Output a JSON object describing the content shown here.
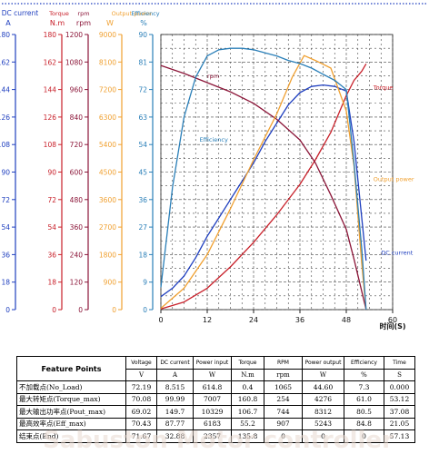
{
  "chart_data": {
    "type": "line",
    "xlabel": "时间(S)",
    "x_ticks": [
      0,
      12,
      24,
      36,
      48,
      60
    ],
    "xlim": [
      0,
      60
    ],
    "grid": true,
    "axes": [
      {
        "key": "dc_current",
        "title": "DC current",
        "unit": "A",
        "color": "#1f3fbf",
        "max": 180,
        "ticks": [
          0,
          18,
          36,
          54,
          72,
          90,
          108,
          126,
          144,
          162,
          180
        ]
      },
      {
        "key": "torque",
        "title": "Torque",
        "unit": "N.m",
        "color": "#c8202a",
        "max": 180,
        "ticks": [
          0,
          18,
          36,
          54,
          72,
          90,
          108,
          126,
          144,
          162,
          180
        ]
      },
      {
        "key": "rpm",
        "title": "rpm",
        "unit": "rpm",
        "color": "#8b1538",
        "max": 1200,
        "ticks": [
          0,
          120,
          240,
          360,
          480,
          600,
          720,
          840,
          960,
          1080,
          1200
        ]
      },
      {
        "key": "output_power",
        "title": "Output power",
        "unit": "W",
        "color": "#f0a030",
        "max": 9000,
        "ticks": [
          0,
          900,
          1800,
          2700,
          3600,
          4500,
          5400,
          6300,
          7200,
          8100,
          9000
        ]
      },
      {
        "key": "efficiency",
        "title": "Efficiency",
        "unit": "%",
        "color": "#2a7fb8",
        "max": 90,
        "ticks": [
          0,
          9,
          18,
          27,
          36,
          45,
          54,
          63,
          72,
          81,
          90
        ]
      }
    ],
    "series": [
      {
        "axis": "dc_current",
        "label": "DC current",
        "color": "#1f3fbf",
        "x": [
          0,
          3,
          6,
          9,
          12,
          15,
          18,
          21,
          24,
          27,
          30,
          33,
          36,
          39,
          42,
          45,
          48,
          50,
          52,
          53.12
        ],
        "y": [
          8.5,
          14,
          22,
          34,
          48,
          60,
          72,
          84,
          96,
          110,
          122,
          134,
          142,
          146,
          147,
          146,
          143,
          110,
          60,
          32
        ]
      },
      {
        "axis": "torque",
        "label": "Torque",
        "color": "#c8202a",
        "x": [
          0,
          6,
          12,
          18,
          24,
          30,
          36,
          40,
          44,
          48,
          50,
          52,
          53.12
        ],
        "y": [
          0.4,
          5,
          14,
          28,
          44,
          62,
          82,
          98,
          116,
          140,
          150,
          156,
          160.8
        ]
      },
      {
        "axis": "rpm",
        "label": "rpm",
        "color": "#8b1538",
        "x": [
          0,
          6,
          12,
          18,
          24,
          30,
          36,
          40,
          44,
          48,
          50,
          52,
          53.12
        ],
        "y": [
          1065,
          1030,
          990,
          950,
          900,
          830,
          740,
          640,
          500,
          350,
          220,
          80,
          0
        ]
      },
      {
        "axis": "output_power",
        "label": "Output power",
        "color": "#f0a030",
        "x": [
          0,
          6,
          12,
          18,
          24,
          30,
          34,
          37.08,
          40,
          44,
          48,
          50,
          52,
          53.12
        ],
        "y": [
          44.6,
          700,
          1800,
          3300,
          4900,
          6400,
          7600,
          8312,
          8150,
          7900,
          6500,
          4700,
          1500,
          0
        ]
      },
      {
        "axis": "efficiency",
        "label": "Efficiency",
        "color": "#2a7fb8",
        "x": [
          0,
          3,
          6,
          9,
          12,
          15,
          18,
          21,
          24,
          27,
          30,
          33,
          36,
          39,
          42,
          45,
          48,
          50,
          52,
          53.12
        ],
        "y": [
          7.3,
          40,
          63,
          76,
          83,
          85,
          85.5,
          85.5,
          85,
          84,
          83,
          81.5,
          80.5,
          79,
          77,
          75,
          72,
          48,
          20,
          0
        ]
      }
    ],
    "curve_labels": [
      {
        "series": "rpm",
        "text": "rpm",
        "x": 12,
        "y": 1010
      },
      {
        "series": "torque",
        "text": "Torque",
        "x": 55,
        "y": 144
      },
      {
        "series": "efficiency",
        "text": "Efficiency",
        "x": 10,
        "y": 55
      },
      {
        "series": "output_power",
        "text": "Output power",
        "x": 55,
        "y": 4200
      },
      {
        "series": "dc_current",
        "text": "DC current",
        "x": 57,
        "y": 36
      }
    ]
  },
  "table": {
    "feature_header": "Feature Points",
    "columns": [
      "Voltage",
      "DC current",
      "Power input",
      "Torque",
      "RPM",
      "Power output",
      "Efficiency",
      "Time"
    ],
    "units": [
      "V",
      "A",
      "W",
      "N.m",
      "rpm",
      "W",
      "%",
      "S"
    ],
    "rows": [
      {
        "name": "不加载点(No_Load)",
        "values": [
          "72.19",
          "8.515",
          "614.8",
          "0.4",
          "1065",
          "44.60",
          "7.3",
          "0.000"
        ]
      },
      {
        "name": "最大转矩点(Torque_max)",
        "values": [
          "70.08",
          "99.99",
          "7007",
          "160.8",
          "254",
          "4276",
          "61.0",
          "53.12"
        ]
      },
      {
        "name": "最大输出功率点(Pout_max)",
        "values": [
          "69.02",
          "149.7",
          "10329",
          "106.7",
          "744",
          "8312",
          "80.5",
          "37.08"
        ]
      },
      {
        "name": "最高效率点(Eff_max)",
        "values": [
          "70.43",
          "87.77",
          "6183",
          "55.2",
          "907",
          "5243",
          "84.8",
          "21.05"
        ]
      },
      {
        "name": "结束点(End)",
        "values": [
          "71.67",
          "32.88",
          "2357",
          "135.8",
          "0",
          "0",
          "0",
          "57.13"
        ]
      }
    ]
  },
  "watermark": "Sabuston Motor controller"
}
